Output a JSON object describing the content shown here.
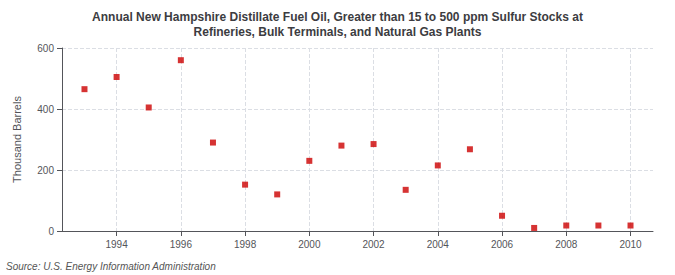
{
  "chart_data": {
    "type": "scatter",
    "title": "Annual New Hampshire Distillate Fuel Oil, Greater than 15 to 500 ppm Sulfur Stocks at\nRefineries, Bulk Terminals, and Natural Gas Plants",
    "ylabel": "Thousand Barrels",
    "annotations": [
      "Source: U.S. Energy Information Administration"
    ],
    "x": [
      1993,
      1994,
      1995,
      1996,
      1997,
      1998,
      1999,
      2000,
      2001,
      2002,
      2003,
      2004,
      2005,
      2006,
      2007,
      2008,
      2009,
      2010
    ],
    "values": [
      465,
      505,
      405,
      560,
      290,
      152,
      120,
      230,
      280,
      285,
      135,
      215,
      268,
      50,
      10,
      18,
      18,
      18
    ],
    "color": "#cc0000",
    "marker": "square",
    "xlim": [
      1992.3,
      2010.7
    ],
    "xticks": [
      1994,
      1996,
      1998,
      2000,
      2002,
      2004,
      2006,
      2008,
      2010
    ],
    "ylim": [
      0,
      600
    ],
    "yticks": [
      0,
      200,
      400,
      600
    ],
    "grid": true
  }
}
